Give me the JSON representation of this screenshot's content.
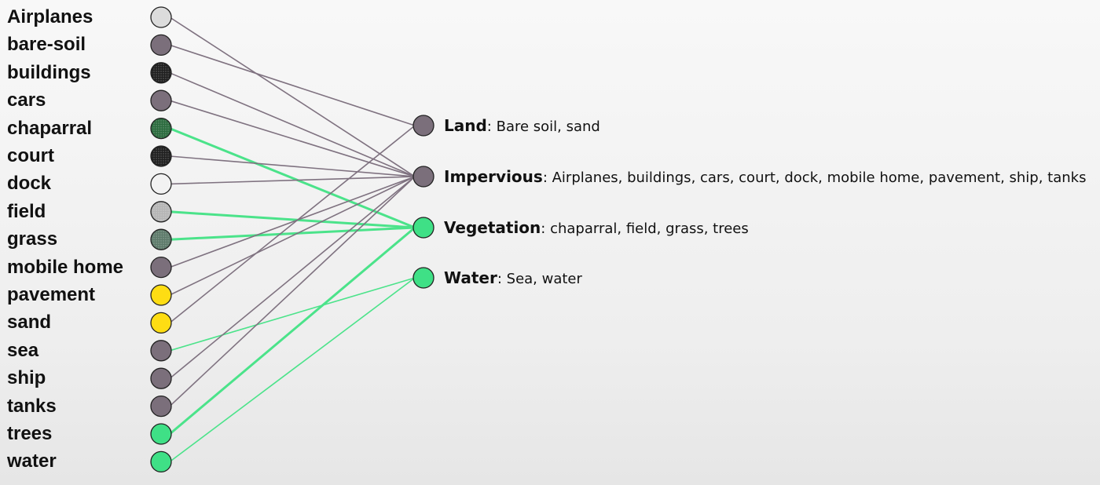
{
  "diagram": {
    "colors": {
      "grey_node": "#7b6f7b",
      "green_node": "#3fe086",
      "yellow_node": "#fedd13",
      "grey_link": "#7f7280",
      "green_link": "#4be38a"
    },
    "sources": [
      {
        "label": "Airplanes",
        "fill": "#dcdcdc",
        "pattern": "",
        "target": "impervious"
      },
      {
        "label": "bare-soil",
        "fill": "#7b6f7b",
        "pattern": "",
        "target": "land"
      },
      {
        "label": "buildings",
        "fill": "#1f1f1f",
        "pattern": "dots",
        "target": "impervious"
      },
      {
        "label": "cars",
        "fill": "#7b6f7b",
        "pattern": "",
        "target": "impervious"
      },
      {
        "label": "chaparral",
        "fill": "#2b6b3e",
        "pattern": "dots",
        "target": "vegetation"
      },
      {
        "label": "court",
        "fill": "#1f1f1f",
        "pattern": "dots",
        "target": "impervious"
      },
      {
        "label": "dock",
        "fill": "#f2f2f2",
        "pattern": "",
        "target": "impervious"
      },
      {
        "label": "field",
        "fill": "#b5b5b5",
        "pattern": "dots",
        "target": "vegetation"
      },
      {
        "label": "grass",
        "fill": "#5d7a6a",
        "pattern": "dots",
        "target": "vegetation"
      },
      {
        "label": "mobile home",
        "fill": "#7b6f7b",
        "pattern": "",
        "target": "impervious"
      },
      {
        "label": "pavement",
        "fill": "#fedd13",
        "pattern": "",
        "target": "impervious"
      },
      {
        "label": "sand",
        "fill": "#fedd13",
        "pattern": "",
        "target": "land"
      },
      {
        "label": "sea",
        "fill": "#7b6f7b",
        "pattern": "",
        "target": "water"
      },
      {
        "label": "ship",
        "fill": "#7b6f7b",
        "pattern": "",
        "target": "impervious"
      },
      {
        "label": "tanks",
        "fill": "#7b6f7b",
        "pattern": "",
        "target": "impervious"
      },
      {
        "label": "trees",
        "fill": "#3fe086",
        "pattern": "",
        "target": "vegetation"
      },
      {
        "label": "water",
        "fill": "#3fe086",
        "pattern": "",
        "target": "water"
      }
    ],
    "targets": [
      {
        "id": "land",
        "name": "Land",
        "separator": ":",
        "members": " Bare soil, sand",
        "fill": "#7b6f7b"
      },
      {
        "id": "impervious",
        "name": "Impervious",
        "separator": ":",
        "members": " Airplanes, buildings, cars, court, dock, mobile home, pavement, ship, tanks",
        "fill": "#7b6f7b"
      },
      {
        "id": "vegetation",
        "name": "Vegetation",
        "separator": ":",
        "members": " chaparral, field, grass, trees",
        "fill": "#3fe086"
      },
      {
        "id": "water",
        "name": "Water",
        "separator": ":",
        "members": " Sea, water",
        "fill": "#3fe086"
      }
    ]
  }
}
